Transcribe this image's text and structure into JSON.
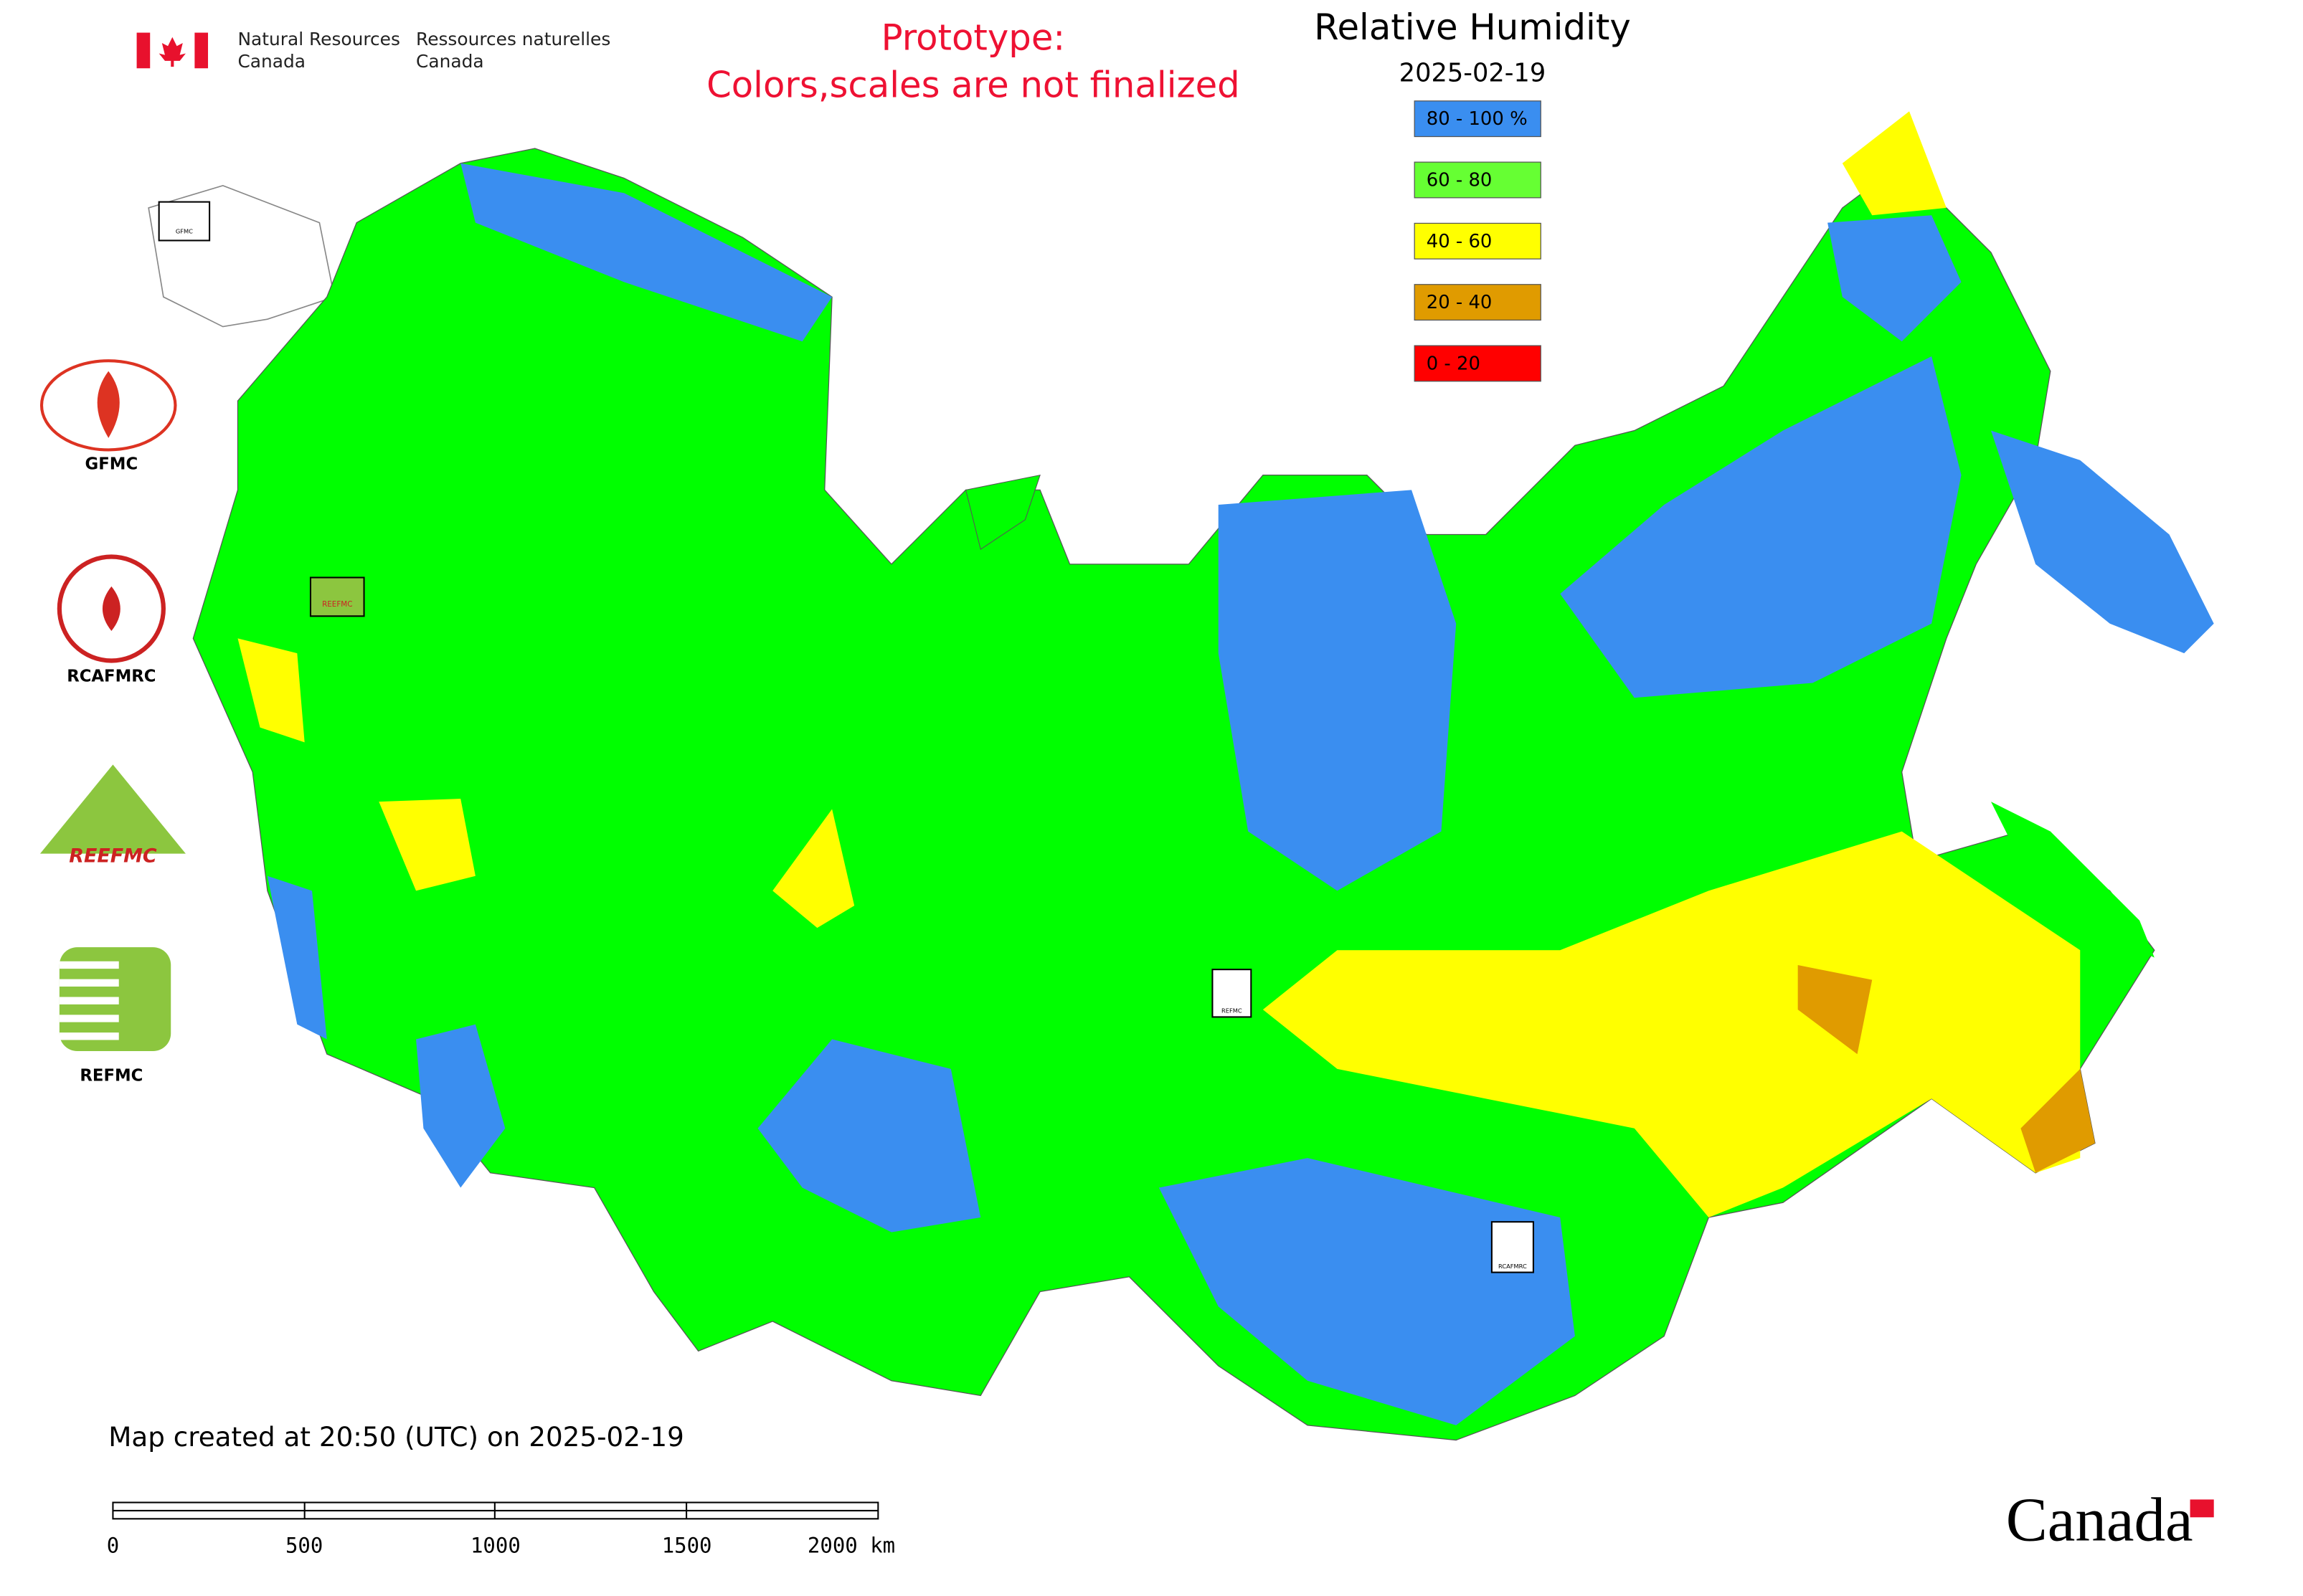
{
  "header": {
    "department_en": [
      "Natural Resources",
      "Canada"
    ],
    "department_fr": [
      "Ressources naturelles",
      "Canada"
    ]
  },
  "notice": [
    "Prototype:",
    "Colors,scales are not finalized"
  ],
  "title": "Relative Humidity",
  "date": "2025-02-19",
  "legend": [
    {
      "label": "80 - 100 %",
      "color": "#3a8ef0"
    },
    {
      "label": "60 - 80",
      "color": "#66ff33"
    },
    {
      "label": "40 - 60",
      "color": "#ffff00"
    },
    {
      "label": "20 - 40",
      "color": "#e09b00"
    },
    {
      "label": "0 - 20",
      "color": "#ff0000"
    }
  ],
  "logos": [
    "GFMC",
    "RCAFMRC",
    "REEFMC",
    "REFMC"
  ],
  "map_markers": [
    "GFMC",
    "REEFMC",
    "REFMC",
    "RCAFMRC"
  ],
  "footer": {
    "created": "Map created at 20:50 (UTC) on 2025-02-19",
    "scale_bar": [
      "0",
      "500",
      "1000",
      "1500",
      "2000 km"
    ],
    "wordmark": "Canada"
  }
}
